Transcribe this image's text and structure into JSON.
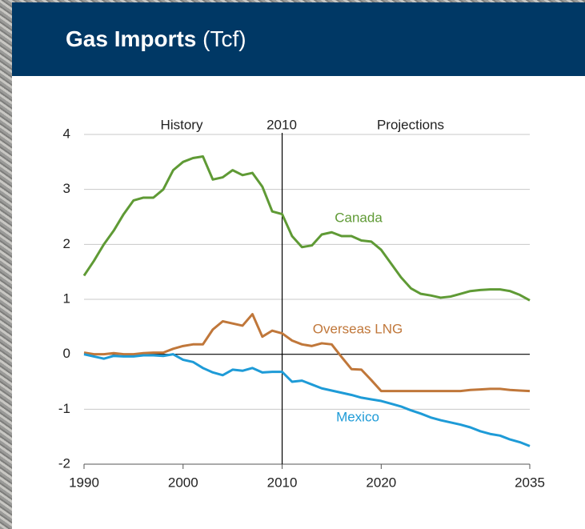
{
  "chart_data": {
    "type": "line",
    "title": "Gas Imports",
    "title_unit": "(Tcf)",
    "annotations": {
      "history": "History",
      "divider": "2010",
      "projections": "Projections"
    },
    "x": [
      1990,
      1991,
      1992,
      1993,
      1994,
      1995,
      1996,
      1997,
      1998,
      1999,
      2000,
      2001,
      2002,
      2003,
      2004,
      2005,
      2006,
      2007,
      2008,
      2009,
      2010,
      2011,
      2012,
      2013,
      2014,
      2015,
      2016,
      2017,
      2018,
      2019,
      2020,
      2021,
      2022,
      2023,
      2024,
      2025,
      2026,
      2027,
      2028,
      2029,
      2030,
      2031,
      2032,
      2033,
      2034,
      2035
    ],
    "series": [
      {
        "name": "Canada",
        "color": "#5f9a35",
        "values": [
          1.43,
          1.7,
          2.0,
          2.25,
          2.55,
          2.8,
          2.85,
          2.85,
          3.0,
          3.35,
          3.5,
          3.57,
          3.6,
          3.18,
          3.22,
          3.35,
          3.26,
          3.3,
          3.05,
          2.6,
          2.55,
          2.15,
          1.95,
          1.98,
          2.18,
          2.22,
          2.15,
          2.15,
          2.07,
          2.05,
          1.9,
          1.65,
          1.4,
          1.2,
          1.1,
          1.07,
          1.03,
          1.05,
          1.1,
          1.15,
          1.17,
          1.18,
          1.18,
          1.15,
          1.08,
          0.98
        ]
      },
      {
        "name": "Overseas LNG",
        "color": "#c0773a",
        "values": [
          0.03,
          0.0,
          0.0,
          0.02,
          0.0,
          0.0,
          0.02,
          0.03,
          0.03,
          0.1,
          0.15,
          0.18,
          0.18,
          0.45,
          0.6,
          0.56,
          0.52,
          0.73,
          0.32,
          0.43,
          0.38,
          0.25,
          0.18,
          0.15,
          0.2,
          0.18,
          -0.05,
          -0.27,
          -0.28,
          -0.47,
          -0.67,
          -0.67,
          -0.67,
          -0.67,
          -0.67,
          -0.67,
          -0.67,
          -0.67,
          -0.67,
          -0.65,
          -0.64,
          -0.63,
          -0.63,
          -0.65,
          -0.66,
          -0.67
        ]
      },
      {
        "name": "Mexico",
        "color": "#1e9bd7",
        "values": [
          0.0,
          -0.04,
          -0.08,
          -0.03,
          -0.04,
          -0.04,
          -0.02,
          -0.02,
          -0.03,
          0.0,
          -0.1,
          -0.14,
          -0.25,
          -0.33,
          -0.38,
          -0.28,
          -0.3,
          -0.25,
          -0.33,
          -0.32,
          -0.32,
          -0.5,
          -0.48,
          -0.55,
          -0.62,
          -0.66,
          -0.7,
          -0.74,
          -0.79,
          -0.82,
          -0.85,
          -0.9,
          -0.95,
          -1.02,
          -1.08,
          -1.15,
          -1.2,
          -1.24,
          -1.28,
          -1.33,
          -1.4,
          -1.45,
          -1.48,
          -1.55,
          -1.6,
          -1.67
        ]
      }
    ],
    "xlim": [
      1990,
      2035
    ],
    "xticks": [
      1990,
      2000,
      2010,
      2020,
      2035
    ],
    "ylim": [
      -2,
      4
    ],
    "yticks": [
      -2,
      -1,
      0,
      1,
      2,
      3,
      4
    ],
    "grid": true
  }
}
